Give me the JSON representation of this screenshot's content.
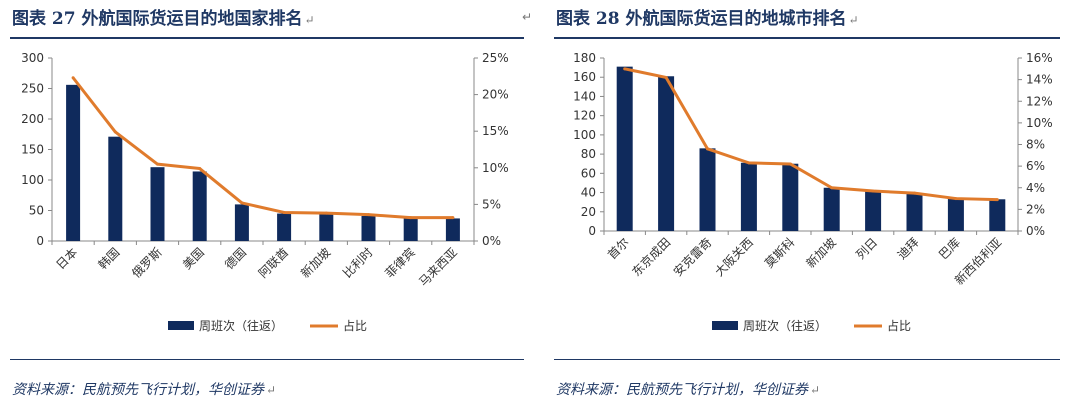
{
  "corner_mark": "↵",
  "chart_data": [
    {
      "type": "bar",
      "title": "图表 27 外航国际货运目的地国家排名",
      "title_mark": "↵",
      "categories": [
        "日本",
        "韩国",
        "俄罗斯",
        "美国",
        "德国",
        "阿联酋",
        "新加坡",
        "比利时",
        "菲律宾",
        "马来西亚"
      ],
      "series": [
        {
          "name": "周班次（往返）",
          "type": "bar",
          "axis": "left",
          "color": "#0f2a5c",
          "values": [
            256,
            171,
            121,
            114,
            60,
            45,
            44,
            41,
            37,
            37
          ]
        },
        {
          "name": "占比",
          "type": "line",
          "axis": "right",
          "color": "#e07b2c",
          "values": [
            22.3,
            14.9,
            10.5,
            9.9,
            5.2,
            3.9,
            3.8,
            3.6,
            3.2,
            3.2
          ]
        }
      ],
      "ylim": [
        0,
        300
      ],
      "yticks": [
        "0",
        "50",
        "100",
        "150",
        "200",
        "250",
        "300"
      ],
      "y2lim": [
        0,
        25
      ],
      "y2ticks": [
        "0%",
        "5%",
        "10%",
        "15%",
        "20%",
        "25%"
      ],
      "legend_placement": "bottom",
      "source": "资料来源：民航预先飞行计划，华创证券",
      "source_mark": "↵"
    },
    {
      "type": "bar",
      "title": "图表 28 外航国际货运目的地城市排名",
      "title_mark": "↵",
      "categories": [
        "首尔",
        "东京成田",
        "安克雷奇",
        "大阪关西",
        "莫斯科",
        "新加坡",
        "列日",
        "迪拜",
        "巴库",
        "新西伯利亚"
      ],
      "series": [
        {
          "name": "周班次（往返）",
          "type": "bar",
          "axis": "left",
          "color": "#0f2a5c",
          "values": [
            171,
            161,
            86,
            71,
            70,
            45,
            41,
            39,
            34,
            33
          ]
        },
        {
          "name": "占比",
          "type": "line",
          "axis": "right",
          "color": "#e07b2c",
          "values": [
            15.0,
            14.2,
            7.6,
            6.3,
            6.2,
            4.0,
            3.7,
            3.5,
            3.0,
            2.9
          ]
        }
      ],
      "ylim": [
        0,
        180
      ],
      "yticks": [
        "0",
        "20",
        "40",
        "60",
        "80",
        "100",
        "120",
        "140",
        "160",
        "180"
      ],
      "y2lim": [
        0,
        16
      ],
      "y2ticks": [
        "0%",
        "2%",
        "4%",
        "6%",
        "8%",
        "10%",
        "12%",
        "14%",
        "16%"
      ],
      "legend_placement": "bottom",
      "source": "资料来源：民航预先飞行计划，华创证券",
      "source_mark": "↵"
    }
  ]
}
